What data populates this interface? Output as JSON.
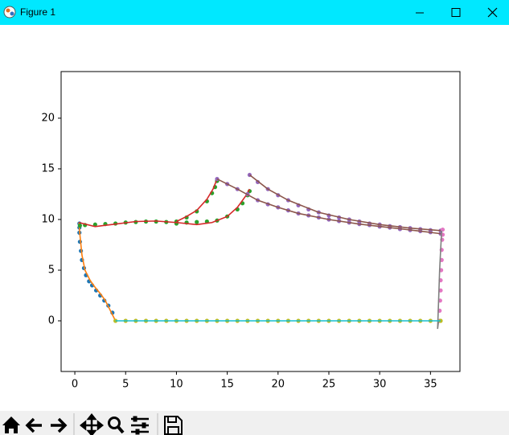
{
  "window_title": "Figure 1",
  "chart_data": {
    "type": "scatter",
    "xlim": [
      -1.35,
      37.9
    ],
    "ylim": [
      -5.0,
      24.6
    ],
    "xticks": [
      0,
      5,
      10,
      15,
      20,
      25,
      30,
      35
    ],
    "yticks": [
      0,
      5,
      10,
      15,
      20
    ],
    "grid": false,
    "series": [
      {
        "color": "#1f77b4",
        "mode": "markers",
        "x": [
          0.45,
          0.45,
          0.45,
          0.5,
          0.6,
          0.7,
          0.9,
          1.1,
          1.4,
          1.7,
          2.1,
          2.5,
          2.9,
          3.3,
          3.7
        ],
        "values": [
          9.6,
          9.2,
          8.7,
          7.8,
          6.9,
          6.0,
          5.2,
          4.5,
          3.9,
          3.5,
          3.0,
          2.5,
          2.0,
          1.5,
          0.8
        ]
      },
      {
        "color": "#ff7f0e",
        "mode": "line",
        "x": [
          0.4,
          0.5,
          0.7,
          1,
          1.5,
          2,
          2.5,
          3,
          3.5,
          4
        ],
        "values": [
          9.7,
          8.5,
          6.5,
          5,
          4,
          3.3,
          2.7,
          2,
          1,
          0
        ]
      },
      {
        "color": "#2ca02c",
        "mode": "markers",
        "x": [
          0.5,
          1,
          2,
          3,
          4,
          5,
          6,
          7,
          8,
          9,
          10,
          11,
          12,
          13,
          13.5,
          13.8,
          14,
          10,
          11,
          12,
          13,
          14,
          15,
          16,
          16.5,
          17,
          17.2
        ],
        "values": [
          9.4,
          9.45,
          9.5,
          9.55,
          9.6,
          9.7,
          9.75,
          9.8,
          9.8,
          9.75,
          9.8,
          10.2,
          10.8,
          11.8,
          12.6,
          13.2,
          13.8,
          9.6,
          9.7,
          9.75,
          9.8,
          9.9,
          10.3,
          11,
          11.6,
          12.4,
          12.8
        ]
      },
      {
        "color": "#d62728",
        "mode": "line",
        "x": [
          0.4,
          2,
          4,
          6,
          8,
          10,
          12,
          13.5,
          15,
          16,
          16.8,
          17.2,
          null,
          10,
          11,
          12,
          13,
          13.6,
          14
        ],
        "values": [
          9.7,
          9.3,
          9.55,
          9.8,
          9.85,
          9.7,
          9.5,
          9.7,
          10.3,
          11.2,
          12.3,
          13,
          null,
          9.8,
          10.3,
          10.9,
          12,
          13,
          14
        ]
      },
      {
        "color": "#9467bd",
        "mode": "markers",
        "x": [
          17.2,
          18,
          19,
          20,
          21,
          22,
          23,
          24,
          25,
          26,
          27,
          28,
          29,
          30,
          31,
          32,
          33,
          34,
          35,
          36,
          14,
          15,
          16,
          17,
          18,
          19,
          20,
          21,
          22,
          23,
          24,
          25,
          26,
          27,
          28,
          29,
          30,
          31,
          32,
          33,
          34,
          35,
          36
        ],
        "values": [
          14.4,
          13.7,
          13,
          12.4,
          11.9,
          11.4,
          11,
          10.7,
          10.4,
          10.2,
          10,
          9.8,
          9.6,
          9.5,
          9.35,
          9.25,
          9.15,
          9.05,
          8.95,
          8.9,
          14,
          13.5,
          13,
          12.5,
          11.9,
          11.5,
          11.2,
          10.9,
          10.6,
          10.4,
          10.2,
          10,
          9.85,
          9.7,
          9.55,
          9.45,
          9.3,
          9.2,
          9.05,
          8.95,
          8.85,
          8.75,
          8.6
        ]
      },
      {
        "color": "#8c564b",
        "mode": "line",
        "x": [
          17.2,
          19,
          21,
          24,
          27,
          30,
          33,
          36,
          null,
          14,
          16,
          18,
          20,
          22,
          25,
          28,
          31,
          34,
          36
        ],
        "values": [
          14.4,
          13,
          11.9,
          10.7,
          10,
          9.5,
          9.15,
          8.9,
          null,
          14,
          13,
          11.9,
          11.2,
          10.6,
          10,
          9.55,
          9.2,
          8.85,
          8.6
        ]
      },
      {
        "color": "#e377c2",
        "mode": "markers",
        "x": [
          36.2,
          36.2,
          36.15,
          36.1,
          36.1,
          36.05,
          36,
          36,
          35.95,
          35.9,
          35.9
        ],
        "values": [
          9,
          8.5,
          8,
          7,
          6,
          5,
          4,
          3,
          2,
          1,
          0
        ]
      },
      {
        "color": "#7f7f7f",
        "mode": "line",
        "x": [
          36.1,
          36,
          35.9,
          35.8,
          35.7,
          35.8
        ],
        "values": [
          8.9,
          7,
          5,
          2,
          -0.8,
          0
        ]
      },
      {
        "color": "#bcbd22",
        "mode": "markers",
        "x": [
          4,
          5,
          6,
          7,
          8,
          9,
          10,
          11,
          12,
          13,
          14,
          15,
          16,
          17,
          18,
          19,
          20,
          21,
          22,
          23,
          24,
          25,
          26,
          27,
          28,
          29,
          30,
          31,
          32,
          33,
          34,
          35,
          36
        ],
        "values": [
          0,
          0,
          0,
          0,
          0,
          0,
          0,
          0,
          0,
          0,
          0,
          0,
          0,
          0,
          0,
          0,
          0,
          0,
          0,
          0,
          0,
          0,
          0,
          0,
          0,
          0,
          0,
          0,
          0,
          0,
          0,
          0,
          0
        ]
      },
      {
        "color": "#17becf",
        "mode": "line",
        "x": [
          4,
          36
        ],
        "values": [
          0,
          0
        ]
      }
    ]
  }
}
